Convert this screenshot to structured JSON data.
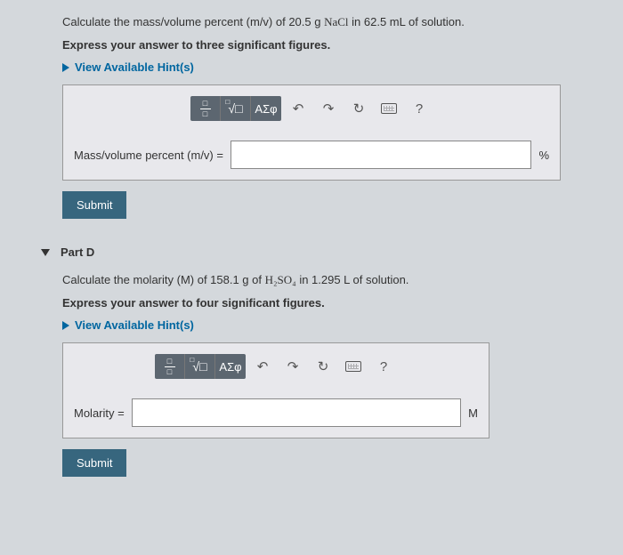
{
  "partC": {
    "question_prefix": "Calculate the mass/volume percent (m/v) of 20.5 g ",
    "formula": "NaCl",
    "question_suffix": " in 62.5 mL of solution.",
    "instruction": "Express your answer to three significant figures.",
    "hint_label": "View Available Hint(s)",
    "input_label": "Mass/volume percent (m/v) =",
    "unit": "%",
    "submit": "Submit"
  },
  "partD": {
    "header": "Part D",
    "question_prefix": "Calculate the molarity (M) of 158.1 g of ",
    "formula_html": "H₂SO₄",
    "question_suffix": " in 1.295 L of solution.",
    "instruction": "Express your answer to four significant figures.",
    "hint_label": "View Available Hint(s)",
    "input_label": "Molarity =",
    "unit": "M",
    "submit": "Submit"
  },
  "toolbar": {
    "greek": "ΑΣφ",
    "undo": "↶",
    "redo": "↷",
    "reset": "↻",
    "help": "?"
  },
  "colors": {
    "page_bg": "#d4d8dc",
    "box_bg": "#e8e8ec",
    "submit_bg": "#37667e",
    "link": "#0066a0",
    "toolbar_bg": "#5c6670"
  }
}
